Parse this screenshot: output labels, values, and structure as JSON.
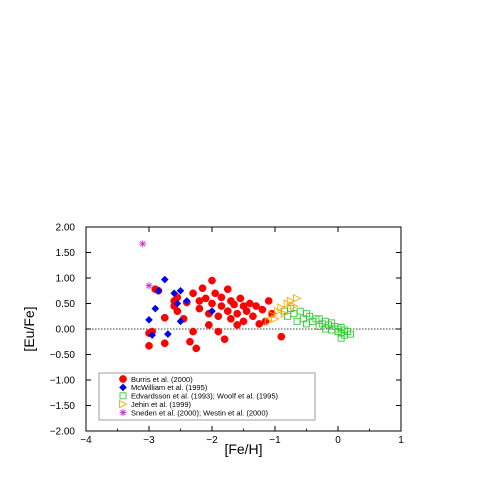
{
  "chart_data": {
    "type": "scatter",
    "title": "",
    "xlabel": "[Fe/H]",
    "ylabel": "[Eu/Fe]",
    "xlim": [
      -4,
      1
    ],
    "ylim": [
      -2,
      2
    ],
    "x_ticks": [
      -4,
      -3,
      -2,
      -1,
      0,
      1
    ],
    "x_tick_labels": [
      "−4",
      "−3",
      "−2",
      "−1",
      "0",
      "1"
    ],
    "y_ticks": [
      2,
      1.5,
      1,
      0.5,
      0,
      -0.5,
      -1,
      -1.5,
      -2
    ],
    "y_tick_labels": [
      "2.00",
      "1.50",
      "1.00",
      "0.50",
      "0.00",
      "−0.50",
      "−1.00",
      "−1.50",
      "−2.00"
    ],
    "reference_line_y": 0,
    "grid": false,
    "legend_position": "bottom-left",
    "series": [
      {
        "name": "Burris et al. (2000)",
        "marker": "filled-circle",
        "color": "#ff0000",
        "points": [
          [
            -3.0,
            -0.33
          ],
          [
            -3.0,
            -0.08
          ],
          [
            -2.95,
            -0.05
          ],
          [
            -2.9,
            0.78
          ],
          [
            -2.85,
            0.75
          ],
          [
            -2.75,
            0.22
          ],
          [
            -2.75,
            -0.28
          ],
          [
            -2.6,
            0.55
          ],
          [
            -2.6,
            0.45
          ],
          [
            -2.55,
            0.62
          ],
          [
            -2.55,
            0.35
          ],
          [
            -2.45,
            0.2
          ],
          [
            -2.4,
            0.52
          ],
          [
            -2.35,
            -0.25
          ],
          [
            -2.3,
            0.7
          ],
          [
            -2.3,
            -0.05
          ],
          [
            -2.25,
            -0.38
          ],
          [
            -2.2,
            0.55
          ],
          [
            -2.2,
            0.4
          ],
          [
            -2.15,
            0.8
          ],
          [
            -2.1,
            0.6
          ],
          [
            -2.05,
            0.3
          ],
          [
            -2.05,
            0.08
          ],
          [
            -2.0,
            0.95
          ],
          [
            -2.0,
            0.5
          ],
          [
            -1.95,
            0.7
          ],
          [
            -1.9,
            0.25
          ],
          [
            -1.9,
            -0.05
          ],
          [
            -1.85,
            0.62
          ],
          [
            -1.85,
            0.45
          ],
          [
            -1.8,
            -0.2
          ],
          [
            -1.75,
            0.78
          ],
          [
            -1.75,
            0.35
          ],
          [
            -1.7,
            0.55
          ],
          [
            -1.7,
            0.2
          ],
          [
            -1.65,
            0.48
          ],
          [
            -1.6,
            0.3
          ],
          [
            -1.6,
            0.08
          ],
          [
            -1.55,
            0.6
          ],
          [
            -1.5,
            0.45
          ],
          [
            -1.5,
            0.15
          ],
          [
            -1.45,
            0.35
          ],
          [
            -1.4,
            0.5
          ],
          [
            -1.35,
            0.25
          ],
          [
            -1.3,
            0.45
          ],
          [
            -1.25,
            0.1
          ],
          [
            -1.2,
            0.38
          ],
          [
            -1.15,
            0.15
          ],
          [
            -1.1,
            0.55
          ],
          [
            -1.05,
            0.3
          ],
          [
            -0.9,
            -0.15
          ]
        ]
      },
      {
        "name": "McWilliam et al. (1995)",
        "marker": "filled-diamond",
        "color": "#0000ee",
        "points": [
          [
            -3.0,
            0.18
          ],
          [
            -2.95,
            -0.12
          ],
          [
            -2.9,
            0.4
          ],
          [
            -2.85,
            0.75
          ],
          [
            -2.75,
            0.97
          ],
          [
            -2.7,
            -0.1
          ],
          [
            -2.6,
            0.7
          ],
          [
            -2.55,
            0.5
          ],
          [
            -2.5,
            0.15
          ],
          [
            -2.5,
            0.75
          ],
          [
            -2.4,
            0.55
          ],
          [
            -2.0,
            0.35
          ]
        ]
      },
      {
        "name": "Edvardsson et al. (1993); Woolf et al. (1995)",
        "marker": "open-square",
        "color": "#33cc33",
        "points": [
          [
            -0.85,
            0.35
          ],
          [
            -0.8,
            0.25
          ],
          [
            -0.75,
            0.4
          ],
          [
            -0.7,
            0.3
          ],
          [
            -0.65,
            0.15
          ],
          [
            -0.6,
            0.35
          ],
          [
            -0.55,
            0.2
          ],
          [
            -0.5,
            0.3
          ],
          [
            -0.5,
            0.1
          ],
          [
            -0.45,
            0.25
          ],
          [
            -0.4,
            0.15
          ],
          [
            -0.35,
            0.2
          ],
          [
            -0.3,
            0.05
          ],
          [
            -0.3,
            0.2
          ],
          [
            -0.25,
            0.1
          ],
          [
            -0.2,
            0.15
          ],
          [
            -0.2,
            0.0
          ],
          [
            -0.15,
            0.08
          ],
          [
            -0.1,
            -0.02
          ],
          [
            -0.1,
            0.12
          ],
          [
            -0.05,
            0.05
          ],
          [
            0.0,
            0.0
          ],
          [
            0.0,
            -0.05
          ],
          [
            0.05,
            -0.08
          ],
          [
            0.05,
            0.03
          ],
          [
            0.1,
            -0.02
          ],
          [
            0.1,
            -0.12
          ],
          [
            0.15,
            -0.05
          ],
          [
            0.2,
            -0.1
          ],
          [
            0.05,
            -0.18
          ]
        ]
      },
      {
        "name": "Jehin et al. (1999)",
        "marker": "open-triangle-right",
        "color": "#ffaa00",
        "points": [
          [
            -1.1,
            0.15
          ],
          [
            -1.05,
            0.28
          ],
          [
            -1.0,
            0.2
          ],
          [
            -0.95,
            0.35
          ],
          [
            -0.9,
            0.42
          ],
          [
            -0.85,
            0.3
          ],
          [
            -0.8,
            0.5
          ],
          [
            -0.75,
            0.55
          ],
          [
            -0.7,
            0.45
          ],
          [
            -0.65,
            0.6
          ]
        ]
      },
      {
        "name": "Sneden et al. (2000); Westin et al. (2000)",
        "marker": "asterisk",
        "color": "#cc33cc",
        "points": [
          [
            -3.1,
            1.67
          ],
          [
            -3.0,
            0.85
          ]
        ]
      }
    ]
  }
}
